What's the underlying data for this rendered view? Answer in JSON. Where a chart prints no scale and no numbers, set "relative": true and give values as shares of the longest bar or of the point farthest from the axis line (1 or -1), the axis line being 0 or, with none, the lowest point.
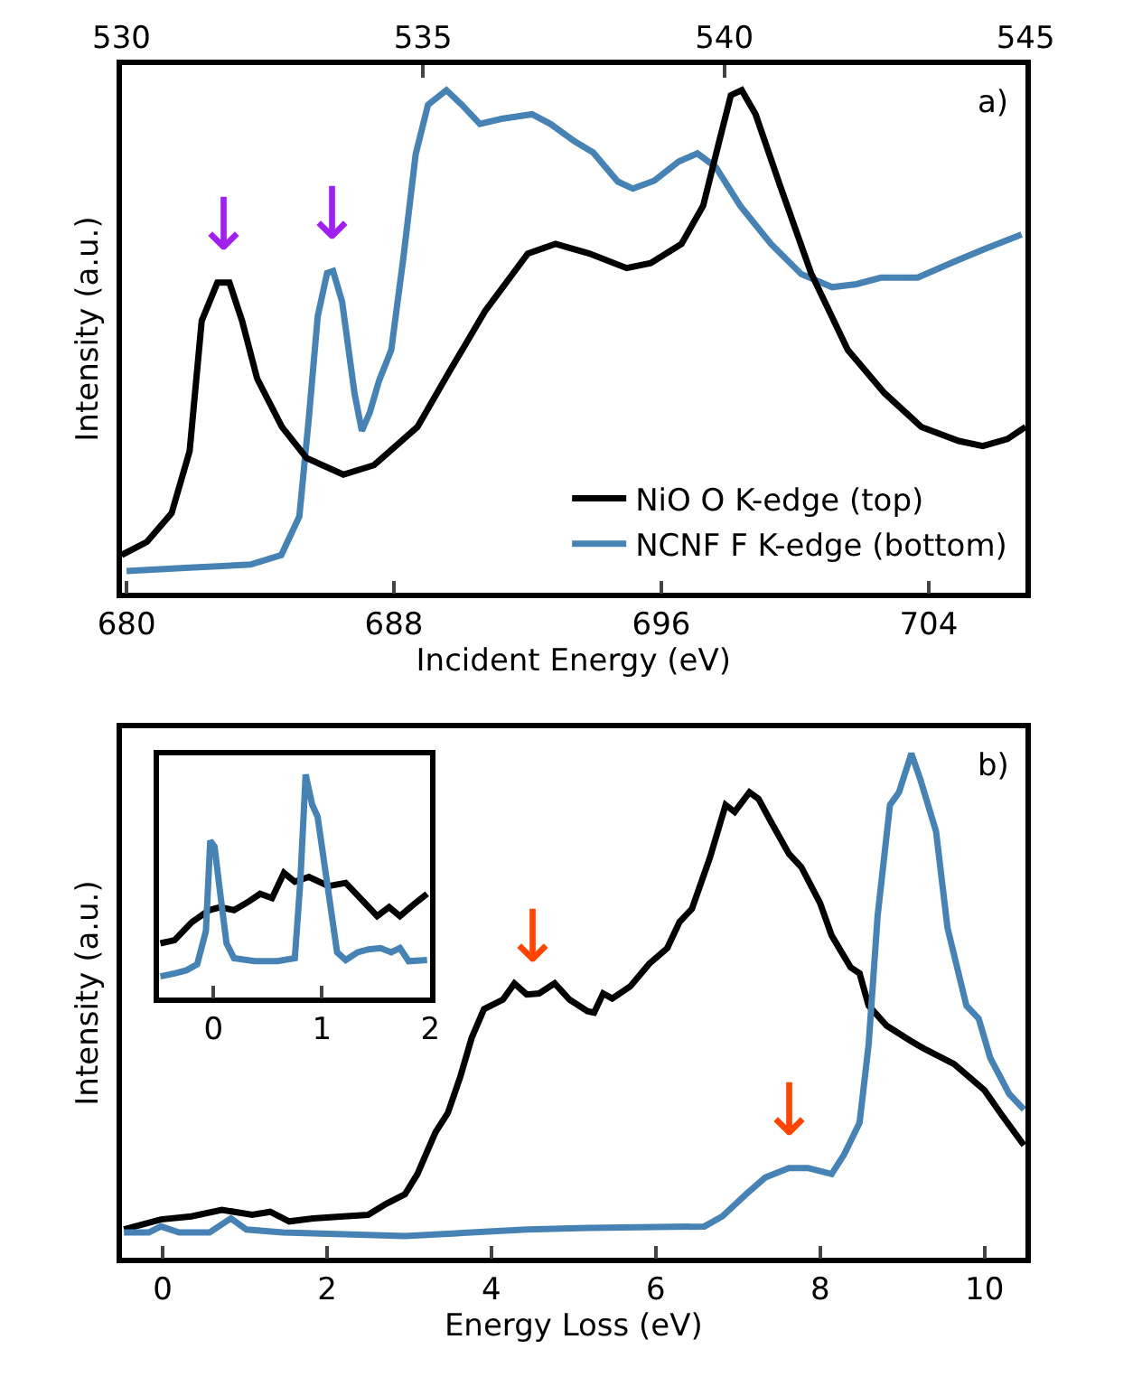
{
  "chart_data": [
    {
      "type": "line",
      "relative": true,
      "xlabel": "Incident Energy (eV)",
      "ylabel": "Intensity (a.u.)",
      "xlim": [
        679.85,
        706.9
      ],
      "xticks": [
        680,
        688,
        696,
        704
      ],
      "x2lim": [
        530,
        545
      ],
      "x2ticks": [
        530,
        535,
        540,
        545
      ],
      "legend": "bottom right",
      "marker": "none",
      "line_style": "solid",
      "annotations": [
        "a)",
        {
          "text": "↓",
          "x": 682.9,
          "y": 0.617
        },
        {
          "text": "↓",
          "x": 686.18,
          "y": 0.64
        }
      ],
      "series": [
        {
          "name": "NiO O K-edge (top)",
          "color": "#000000",
          "axis": "x2",
          "x": [
            530.0,
            530.42,
            530.83,
            531.13,
            531.33,
            531.59,
            531.79,
            532.0,
            532.25,
            532.66,
            533.07,
            533.68,
            534.19,
            534.91,
            535.42,
            536.03,
            536.74,
            537.2,
            537.76,
            538.38,
            538.78,
            539.29,
            539.65,
            539.91,
            540.11,
            540.29,
            540.52,
            540.93,
            541.44,
            542.05,
            542.66,
            543.27,
            543.89,
            544.29,
            544.7,
            545.0
          ],
          "values": [
            0.075,
            0.101,
            0.158,
            0.282,
            0.541,
            0.617,
            0.617,
            0.541,
            0.426,
            0.33,
            0.268,
            0.235,
            0.254,
            0.33,
            0.436,
            0.56,
            0.675,
            0.694,
            0.675,
            0.646,
            0.656,
            0.694,
            0.77,
            0.895,
            0.99,
            1.0,
            0.952,
            0.809,
            0.636,
            0.483,
            0.397,
            0.33,
            0.302,
            0.292,
            0.306,
            0.33
          ]
        },
        {
          "name": "NCNF F K-edge (bottom)",
          "color": "#4682b4",
          "x": [
            680.0,
            681.88,
            683.71,
            684.63,
            685.17,
            685.45,
            685.72,
            686.0,
            686.18,
            686.45,
            686.82,
            687.04,
            687.28,
            687.55,
            687.92,
            688.28,
            688.65,
            689.02,
            689.57,
            690.03,
            690.57,
            691.22,
            692.13,
            692.68,
            693.41,
            693.96,
            694.7,
            695.15,
            695.79,
            696.52,
            697.08,
            697.63,
            698.36,
            699.28,
            700.19,
            701.11,
            701.84,
            702.57,
            703.67,
            704.77,
            705.68,
            706.78
          ],
          "values": [
            0.043,
            0.05,
            0.056,
            0.075,
            0.152,
            0.345,
            0.55,
            0.636,
            0.64,
            0.579,
            0.397,
            0.322,
            0.359,
            0.421,
            0.483,
            0.665,
            0.872,
            0.971,
            1.0,
            0.971,
            0.933,
            0.943,
            0.952,
            0.933,
            0.898,
            0.876,
            0.818,
            0.804,
            0.82,
            0.858,
            0.874,
            0.847,
            0.77,
            0.694,
            0.634,
            0.608,
            0.614,
            0.627,
            0.627,
            0.659,
            0.684,
            0.713
          ]
        }
      ]
    },
    {
      "type": "line",
      "relative": true,
      "xlabel": "Energy Loss (eV)",
      "ylabel": "Intensity (a.u.)",
      "xlim": [
        -0.5,
        10.5
      ],
      "xticks": [
        0,
        2,
        4,
        6,
        8,
        10
      ],
      "legend": false,
      "marker": "none",
      "line_style": "solid",
      "annotations": [
        "b)",
        {
          "text": "↓",
          "x": 4.51,
          "y": 0.523
        },
        {
          "text": "↓",
          "x": 7.62,
          "y": 0.178
        }
      ],
      "series": [
        {
          "color": "#000000",
          "x": [
            -0.47,
            -0.02,
            0.35,
            0.72,
            1.09,
            1.31,
            1.54,
            1.83,
            2.2,
            2.5,
            2.72,
            2.95,
            3.1,
            3.32,
            3.47,
            3.62,
            3.76,
            3.91,
            4.14,
            4.28,
            4.43,
            4.58,
            4.77,
            4.95,
            5.17,
            5.25,
            5.36,
            5.47,
            5.69,
            5.92,
            6.14,
            6.29,
            6.44,
            6.66,
            6.85,
            6.96,
            7.14,
            7.25,
            7.4,
            7.62,
            7.77,
            8.0,
            8.14,
            8.37,
            8.48,
            8.59,
            8.81,
            9.11,
            9.26,
            9.63,
            10.0,
            10.22,
            10.48
          ],
          "values": [
            0.056,
            0.076,
            0.082,
            0.095,
            0.085,
            0.091,
            0.072,
            0.078,
            0.082,
            0.085,
            0.107,
            0.126,
            0.166,
            0.249,
            0.287,
            0.358,
            0.436,
            0.493,
            0.512,
            0.544,
            0.522,
            0.524,
            0.544,
            0.512,
            0.489,
            0.486,
            0.524,
            0.514,
            0.538,
            0.583,
            0.614,
            0.666,
            0.692,
            0.794,
            0.898,
            0.884,
            0.923,
            0.91,
            0.865,
            0.801,
            0.775,
            0.703,
            0.639,
            0.576,
            0.564,
            0.5,
            0.46,
            0.429,
            0.415,
            0.384,
            0.332,
            0.281,
            0.223
          ]
        },
        {
          "color": "#4682b4",
          "x": [
            -0.47,
            -0.17,
            -0.02,
            0.2,
            0.57,
            0.83,
            1.02,
            1.46,
            2.95,
            4.43,
            5.17,
            6.59,
            6.81,
            7.1,
            7.33,
            7.62,
            7.85,
            8.14,
            8.29,
            8.48,
            8.59,
            8.7,
            8.85,
            8.96,
            9.11,
            9.22,
            9.41,
            9.55,
            9.78,
            9.93,
            10.07,
            10.3,
            10.48
          ],
          "values": [
            0.05,
            0.05,
            0.062,
            0.05,
            0.05,
            0.078,
            0.056,
            0.05,
            0.043,
            0.056,
            0.059,
            0.062,
            0.082,
            0.126,
            0.159,
            0.178,
            0.178,
            0.166,
            0.204,
            0.268,
            0.422,
            0.679,
            0.898,
            0.923,
            1.0,
            0.948,
            0.846,
            0.654,
            0.5,
            0.474,
            0.396,
            0.325,
            0.294
          ]
        }
      ]
    },
    {
      "type": "line",
      "relative": true,
      "xlim": [
        -0.5,
        2
      ],
      "xticks": [
        0,
        1,
        2
      ],
      "legend": false,
      "marker": "none",
      "line_style": "solid",
      "series": [
        {
          "color": "#000000",
          "x": [
            -0.49,
            -0.36,
            -0.2,
            -0.04,
            0.06,
            0.19,
            0.33,
            0.43,
            0.54,
            0.65,
            0.75,
            0.88,
            1.06,
            1.22,
            1.38,
            1.51,
            1.62,
            1.72,
            1.85,
            1.97
          ],
          "values": [
            0.243,
            0.257,
            0.338,
            0.392,
            0.405,
            0.392,
            0.432,
            0.465,
            0.446,
            0.559,
            0.519,
            0.541,
            0.5,
            0.514,
            0.432,
            0.365,
            0.405,
            0.365,
            0.419,
            0.465
          ]
        },
        {
          "color": "#4682b4",
          "x": [
            -0.49,
            -0.36,
            -0.25,
            -0.15,
            -0.07,
            -0.03,
            0.01,
            0.05,
            0.12,
            0.19,
            0.38,
            0.59,
            0.75,
            0.8,
            0.85,
            0.91,
            0.96,
            1.04,
            1.14,
            1.22,
            1.33,
            1.43,
            1.54,
            1.64,
            1.72,
            1.8,
            1.97
          ],
          "values": [
            0.095,
            0.108,
            0.122,
            0.149,
            0.298,
            0.703,
            0.676,
            0.514,
            0.243,
            0.176,
            0.163,
            0.163,
            0.176,
            0.514,
            1.0,
            0.865,
            0.811,
            0.541,
            0.203,
            0.168,
            0.203,
            0.216,
            0.222,
            0.203,
            0.222,
            0.163,
            0.168
          ]
        }
      ]
    }
  ]
}
